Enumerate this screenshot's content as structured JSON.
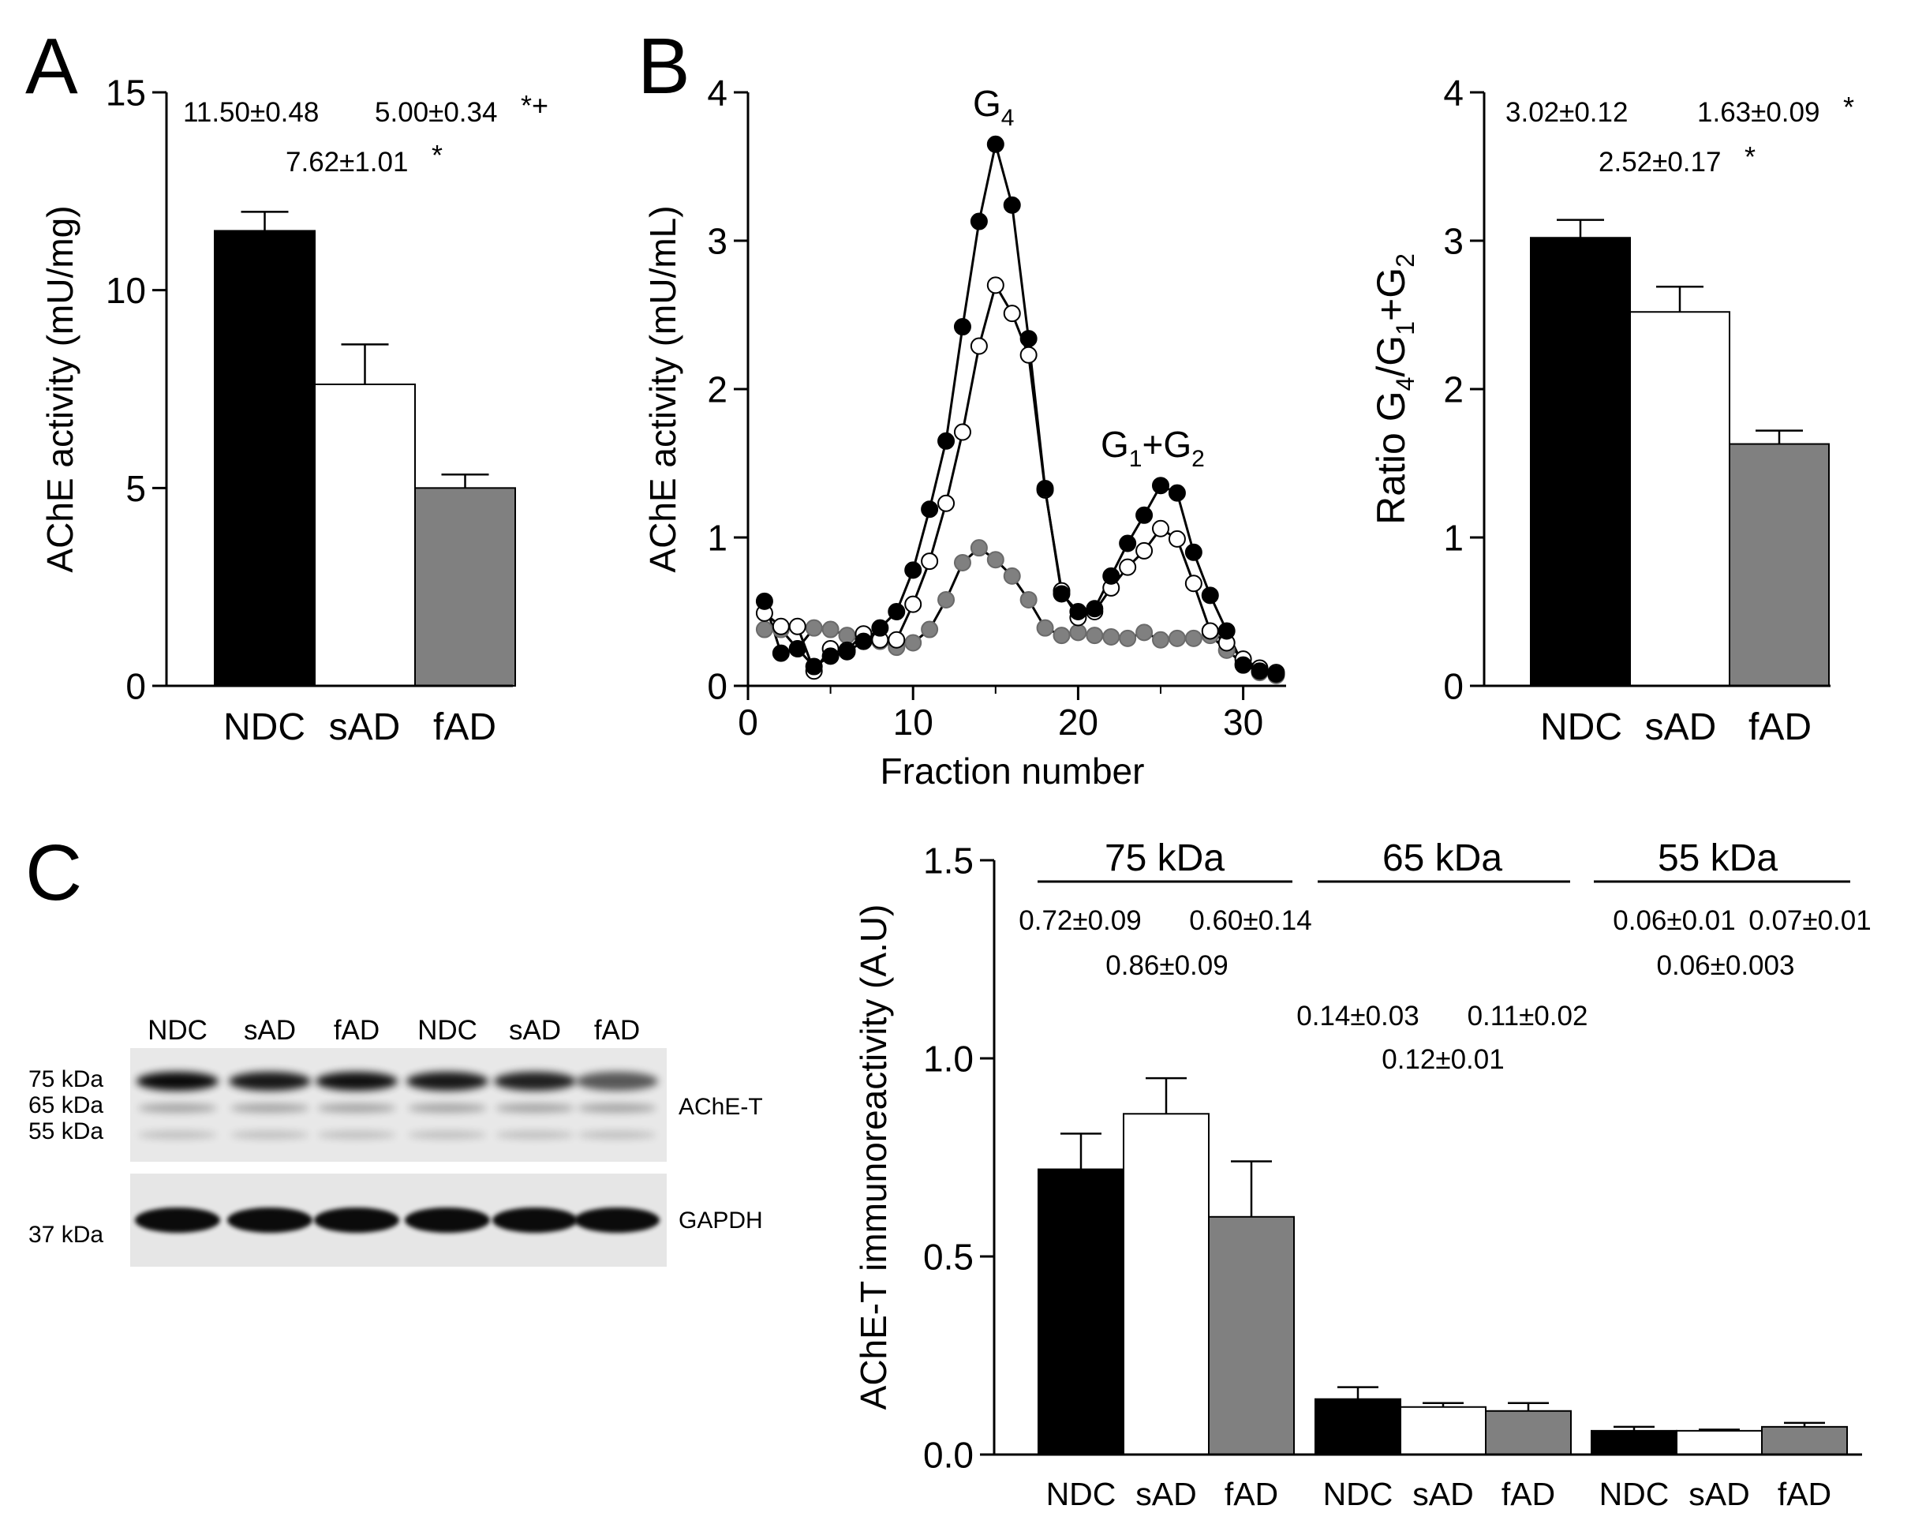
{
  "colors": {
    "ndc": "#000000",
    "sad": "#ffffff",
    "fad": "#808080",
    "axis": "#000000"
  },
  "panel_labels": {
    "a": "A",
    "b": "B",
    "c": "C"
  },
  "chart_data": [
    {
      "id": "A",
      "type": "bar",
      "ylabel": "AChE activity (mU/mg)",
      "categories": [
        "NDC",
        "sAD",
        "fAD"
      ],
      "values": [
        11.5,
        7.62,
        5.0
      ],
      "errors": [
        0.48,
        1.01,
        0.34
      ],
      "ylim": [
        0,
        15
      ],
      "yticks": [
        0,
        5,
        10,
        15
      ],
      "yticklabels": [
        "0",
        "5",
        "10",
        "15"
      ],
      "annotations": {
        "ndc": "11.50±0.48",
        "fad": "5.00±0.34",
        "fad_sig": "*+",
        "sad": "7.62±1.01",
        "sad_sig": "*"
      }
    },
    {
      "id": "B-profile",
      "type": "line",
      "xlabel": "Fraction number",
      "ylabel": "AChE activity (mU/mL)",
      "xlim": [
        0,
        32.6
      ],
      "ylim": [
        0,
        4
      ],
      "xticks": [
        0,
        10,
        20,
        30
      ],
      "xticklabels": [
        "0",
        "10",
        "20",
        "30"
      ],
      "yticks": [
        0,
        1,
        2,
        3,
        4
      ],
      "yticklabels": [
        "0",
        "1",
        "2",
        "3",
        "4"
      ],
      "peaks": {
        "g4": {
          "base": "G",
          "sub": "4"
        },
        "g12": {
          "a": "G",
          "a_sub": "1",
          "plus": "+",
          "b": "G",
          "b_sub": "2"
        }
      },
      "x": [
        1,
        2,
        3,
        4,
        5,
        6,
        7,
        8,
        9,
        10,
        11,
        12,
        13,
        14,
        15,
        16,
        17,
        18,
        19,
        20,
        21,
        22,
        23,
        24,
        25,
        26,
        27,
        28,
        29,
        30,
        31,
        32
      ],
      "series": [
        {
          "name": "NDC",
          "values": [
            0.57,
            0.22,
            0.25,
            0.13,
            0.2,
            0.23,
            0.3,
            0.39,
            0.5,
            0.78,
            1.19,
            1.65,
            2.42,
            3.13,
            3.65,
            3.24,
            2.34,
            1.33,
            0.62,
            0.5,
            0.52,
            0.74,
            0.96,
            1.15,
            1.35,
            1.3,
            0.9,
            0.61,
            0.37,
            0.14,
            0.1,
            0.08
          ]
        },
        {
          "name": "sAD",
          "values": [
            0.49,
            0.4,
            0.4,
            0.1,
            0.25,
            0.24,
            0.35,
            0.31,
            0.31,
            0.55,
            0.84,
            1.23,
            1.71,
            2.29,
            2.7,
            2.51,
            2.23,
            1.32,
            0.64,
            0.46,
            0.5,
            0.66,
            0.8,
            0.91,
            1.06,
            0.99,
            0.69,
            0.37,
            0.29,
            0.18,
            0.12,
            0.09
          ]
        },
        {
          "name": "fAD",
          "values": [
            0.38,
            0.38,
            0.25,
            0.39,
            0.38,
            0.34,
            0.3,
            0.3,
            0.26,
            0.29,
            0.38,
            0.58,
            0.83,
            0.93,
            0.85,
            0.74,
            0.58,
            0.39,
            0.34,
            0.36,
            0.34,
            0.33,
            0.32,
            0.36,
            0.31,
            0.32,
            0.32,
            0.34,
            0.24,
            0.15,
            0.09,
            0.07
          ]
        }
      ]
    },
    {
      "id": "B-ratio",
      "type": "bar",
      "ylabel": {
        "ratio": "Ratio G",
        "s4": "4",
        "slash": "/G",
        "s1": "1",
        "plus": "+G",
        "s2": "2"
      },
      "categories": [
        "NDC",
        "sAD",
        "fAD"
      ],
      "values": [
        3.02,
        2.52,
        1.63
      ],
      "errors": [
        0.12,
        0.17,
        0.09
      ],
      "ylim": [
        0,
        4
      ],
      "yticks": [
        0,
        1,
        2,
        3,
        4
      ],
      "yticklabels": [
        "0",
        "1",
        "2",
        "3",
        "4"
      ],
      "annotations": {
        "ndc": "3.02±0.12",
        "fad": "1.63±0.09",
        "fad_sig": "*",
        "sad": "2.52±0.17",
        "sad_sig": "*"
      }
    },
    {
      "id": "C",
      "type": "bar",
      "ylabel": "AChE-T immunoreactivity (A.U)",
      "groups": [
        "75 kDa",
        "65 kDa",
        "55 kDa"
      ],
      "categories": [
        "NDC",
        "sAD",
        "fAD"
      ],
      "series": [
        {
          "name": "75 kDa",
          "values": [
            0.72,
            0.86,
            0.6
          ],
          "errors": [
            0.09,
            0.09,
            0.14
          ],
          "labels": [
            "0.72±0.09",
            "0.86±0.09",
            "0.60±0.14"
          ]
        },
        {
          "name": "65 kDa",
          "values": [
            0.14,
            0.12,
            0.11
          ],
          "errors": [
            0.03,
            0.01,
            0.02
          ],
          "labels": [
            "0.14±0.03",
            "0.12±0.01",
            "0.11±0.02"
          ]
        },
        {
          "name": "55 kDa",
          "values": [
            0.06,
            0.06,
            0.07
          ],
          "errors": [
            0.01,
            0.003,
            0.01
          ],
          "labels": [
            "0.06±0.01",
            "0.06±0.003",
            "0.07±0.01"
          ]
        }
      ],
      "ylim": [
        0,
        1.5
      ],
      "yticks": [
        0,
        0.5,
        1.0,
        1.5
      ],
      "yticklabels": [
        "0.0",
        "0.5",
        "1.0",
        "1.5"
      ]
    }
  ],
  "blot": {
    "lanes": [
      "NDC",
      "sAD",
      "fAD",
      "NDC",
      "sAD",
      "fAD"
    ],
    "markers": [
      "75 kDa",
      "65 kDa",
      "55 kDa"
    ],
    "gapdh_marker": "37 kDa",
    "ache_label": "AChE-T",
    "gapdh_label": "GAPDH",
    "band_75_intensity": [
      1.0,
      0.9,
      0.95,
      0.9,
      0.85,
      0.45
    ]
  }
}
